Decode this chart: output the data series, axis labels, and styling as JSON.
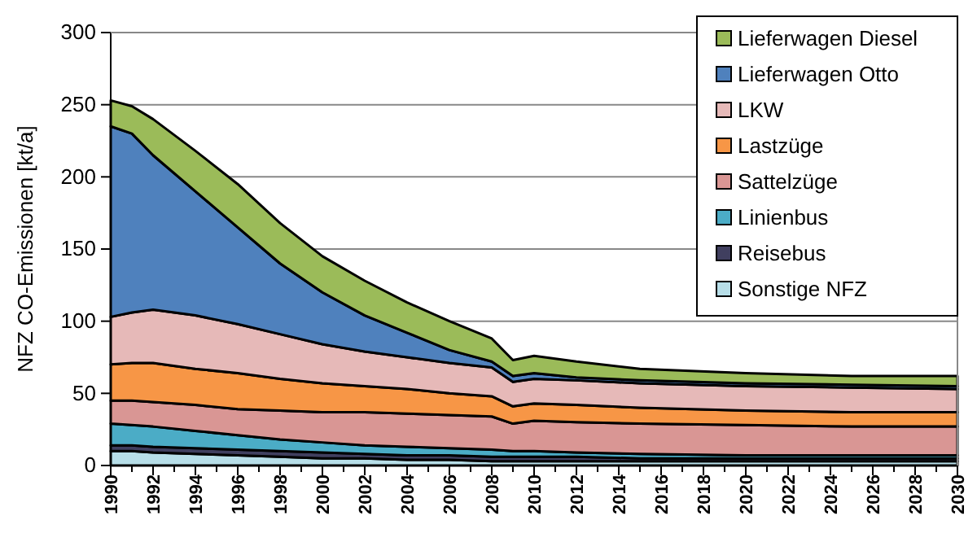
{
  "chart_data": {
    "type": "area",
    "stacked": true,
    "ylabel": "NFZ CO-Emissionen [kt/a]",
    "x": [
      1990,
      1991,
      1992,
      1994,
      1996,
      1998,
      2000,
      2002,
      2004,
      2006,
      2008,
      2009,
      2010,
      2012,
      2015,
      2020,
      2025,
      2030
    ],
    "xlim": [
      1990,
      2030
    ],
    "xticks": [
      1990,
      1992,
      1994,
      1996,
      1998,
      2000,
      2002,
      2004,
      2006,
      2008,
      2010,
      2012,
      2014,
      2016,
      2018,
      2020,
      2022,
      2024,
      2026,
      2028,
      2030
    ],
    "ylim": [
      0,
      300
    ],
    "yticks": [
      0,
      50,
      100,
      150,
      200,
      250,
      300
    ],
    "grid": "y",
    "legend": "top right",
    "series": [
      {
        "name": "Sonstige NFZ",
        "color": "#b7dee8",
        "values": [
          10,
          10,
          9,
          8,
          7,
          6,
          5,
          5,
          4,
          4,
          3,
          3,
          3,
          3,
          3,
          3,
          3,
          3
        ]
      },
      {
        "name": "Reisebus",
        "color": "#403f5f",
        "values": [
          4,
          4,
          4,
          4,
          4,
          4,
          4,
          3,
          3,
          3,
          3,
          3,
          3,
          3,
          2,
          2,
          2,
          2
        ]
      },
      {
        "name": "Linienbus",
        "color": "#4bacc6",
        "values": [
          15,
          14,
          14,
          12,
          10,
          8,
          7,
          6,
          6,
          5,
          5,
          4,
          4,
          3,
          3,
          2,
          2,
          2
        ]
      },
      {
        "name": "Sattelzüge",
        "color": "#d99694",
        "values": [
          16,
          17,
          17,
          18,
          18,
          20,
          21,
          23,
          23,
          23,
          23,
          19,
          21,
          21,
          21,
          21,
          20,
          20
        ]
      },
      {
        "name": "Lastzüge",
        "color": "#f79646",
        "values": [
          25,
          26,
          27,
          25,
          25,
          22,
          20,
          18,
          17,
          15,
          14,
          12,
          12,
          12,
          11,
          10,
          10,
          10
        ]
      },
      {
        "name": "LKW",
        "color": "#e6b9b8",
        "values": [
          33,
          35,
          37,
          37,
          34,
          31,
          27,
          24,
          22,
          21,
          20,
          17,
          17,
          17,
          17,
          17,
          17,
          16
        ]
      },
      {
        "name": "Lieferwagen Otto",
        "color": "#4f81bd",
        "values": [
          132,
          124,
          107,
          86,
          67,
          49,
          36,
          25,
          17,
          9,
          4,
          4,
          4,
          2,
          2,
          2,
          2,
          2
        ]
      },
      {
        "name": "Lieferwagen Diesel",
        "color": "#9bbb59",
        "values": [
          18,
          19,
          25,
          28,
          30,
          28,
          25,
          24,
          21,
          20,
          16,
          11,
          12,
          11,
          8,
          7,
          6,
          7
        ]
      }
    ]
  }
}
